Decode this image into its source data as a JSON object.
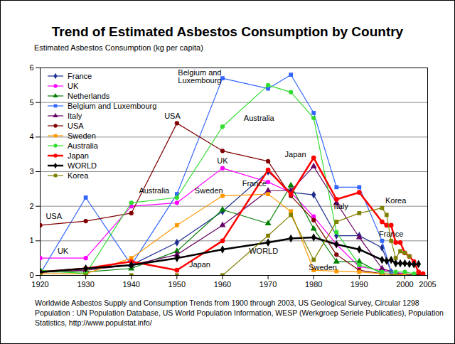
{
  "chart_data": {
    "type": "line",
    "title": "Trend of Estimated Asbestos Consumption by Country",
    "y_label": "Estimated Asbestos Consumption (kg per capita)",
    "xlim": [
      1920,
      2005
    ],
    "xticks": [
      1920,
      1930,
      1940,
      1950,
      1960,
      1970,
      1980,
      1990,
      2000,
      2005
    ],
    "ylim": [
      0,
      6
    ],
    "yticks": [
      0,
      1,
      2,
      3,
      4,
      5,
      6
    ],
    "grid": true,
    "legend": "top-left",
    "series": [
      {
        "name": "France",
        "color": "#1f2f8f",
        "marker": "diamond",
        "x": [
          1920,
          1930,
          1940,
          1950,
          1960,
          1970,
          1975,
          1980,
          1985,
          1990,
          1995,
          1997,
          2000
        ],
        "values": [
          0.1,
          0.2,
          0.3,
          0.95,
          1.85,
          3.0,
          2.4,
          2.33,
          1.15,
          1.15,
          0.8,
          0.1,
          0.0
        ]
      },
      {
        "name": "UK",
        "color": "#ff00ff",
        "marker": "circle",
        "x": [
          1920,
          1930,
          1940,
          1950,
          1960,
          1970,
          1975,
          1980,
          1985,
          1990,
          1995,
          2000
        ],
        "values": [
          0.5,
          0.5,
          2.0,
          2.1,
          3.1,
          2.7,
          2.4,
          1.7,
          0.9,
          0.25,
          0.15,
          0.05
        ]
      },
      {
        "name": "Netherlands",
        "color": "#008000",
        "marker": "triangle",
        "x": [
          1920,
          1930,
          1940,
          1950,
          1960,
          1970,
          1975,
          1980,
          1985,
          1990,
          1995,
          2000
        ],
        "values": [
          0.1,
          0.1,
          0.2,
          0.7,
          1.9,
          1.5,
          2.6,
          1.35,
          0.4,
          0.4,
          0.05,
          0.0
        ]
      },
      {
        "name": "Belgium and Luxembourg",
        "color": "#3366ff",
        "marker": "square",
        "x": [
          1920,
          1930,
          1940,
          1950,
          1960,
          1970,
          1975,
          1980,
          1985,
          1990,
          1995,
          1997,
          2000
        ],
        "values": [
          0.05,
          2.25,
          0.3,
          2.35,
          5.7,
          5.4,
          5.8,
          4.7,
          2.55,
          2.55,
          1.0,
          0.1,
          0.0
        ]
      },
      {
        "name": "Italy",
        "color": "#660066",
        "marker": "triangle",
        "x": [
          1920,
          1930,
          1940,
          1950,
          1960,
          1970,
          1975,
          1980,
          1985,
          1990,
          1995,
          2000
        ],
        "values": [
          0.1,
          0.15,
          0.3,
          0.6,
          1.45,
          2.45,
          2.45,
          3.15,
          2.1,
          1.1,
          0.2,
          0.0
        ]
      },
      {
        "name": "USA",
        "color": "#800000",
        "marker": "circle",
        "x": [
          1920,
          1930,
          1940,
          1950,
          1960,
          1970,
          1975,
          1980,
          1985,
          1990,
          1995,
          2000,
          2003
        ],
        "values": [
          1.45,
          1.57,
          1.8,
          4.4,
          3.6,
          3.3,
          2.3,
          1.6,
          0.6,
          0.15,
          0.05,
          0.03,
          0.02
        ]
      },
      {
        "name": "Sweden",
        "color": "#ff9900",
        "marker": "square",
        "x": [
          1920,
          1930,
          1940,
          1950,
          1960,
          1970,
          1975,
          1980,
          1985,
          1990,
          1995,
          2000
        ],
        "values": [
          0.05,
          0.05,
          0.5,
          1.45,
          2.3,
          2.35,
          1.85,
          0.15,
          0.12,
          0.1,
          0.05,
          0.02
        ]
      },
      {
        "name": "Australia",
        "color": "#33dd33",
        "marker": "circle",
        "x": [
          1920,
          1930,
          1940,
          1950,
          1960,
          1970,
          1975,
          1980,
          1985,
          1990,
          1995,
          1998,
          2000,
          2002
        ],
        "values": [
          0.15,
          0.05,
          2.1,
          2.25,
          4.3,
          5.5,
          5.3,
          4.55,
          1.25,
          0.3,
          0.1,
          0.1,
          0.1,
          0.05
        ]
      },
      {
        "name": "Japan",
        "color": "#ff0000",
        "marker": "circle",
        "line_style": "bold",
        "x": [
          1920,
          1930,
          1940,
          1950,
          1960,
          1970,
          1975,
          1980,
          1985,
          1990,
          1995,
          1996,
          1997,
          1998,
          1999,
          2000,
          2001,
          2002,
          2003,
          2004
        ],
        "values": [
          0.1,
          0.2,
          0.4,
          0.15,
          1.0,
          3.05,
          2.35,
          3.4,
          2.2,
          2.4,
          1.55,
          1.45,
          1.45,
          0.95,
          0.95,
          0.65,
          0.55,
          0.4,
          0.1,
          0.05
        ]
      },
      {
        "name": "WORLD",
        "color": "#000000",
        "marker": "diamond",
        "line_style": "bold",
        "x": [
          1920,
          1930,
          1940,
          1950,
          1960,
          1970,
          1975,
          1980,
          1985,
          1990,
          1995,
          1996,
          1997,
          1998,
          1999,
          2000,
          2001,
          2002,
          2003
        ],
        "values": [
          0.1,
          0.2,
          0.3,
          0.5,
          0.75,
          0.95,
          1.07,
          1.1,
          0.9,
          0.75,
          0.45,
          0.42,
          0.45,
          0.35,
          0.35,
          0.35,
          0.33,
          0.32,
          0.33
        ]
      },
      {
        "name": "Korea",
        "color": "#808000",
        "marker": "square",
        "x": [
          1920,
          1930,
          1940,
          1950,
          1960,
          1970,
          1975,
          1980,
          1985,
          1990,
          1995,
          1996,
          1997,
          1998,
          1999,
          2000,
          2001
        ],
        "values": [
          0.0,
          0.0,
          0.0,
          0.0,
          0.0,
          1.15,
          1.75,
          0.45,
          1.55,
          1.8,
          1.95,
          1.75,
          1.0,
          0.5,
          0.7,
          0.65,
          0.55
        ]
      }
    ],
    "annotations": [
      {
        "text": "Belgium and\nLuxembourg",
        "x": 1955,
        "y": 5.75
      },
      {
        "text": "Australia",
        "x": 1968,
        "y": 4.55
      },
      {
        "text": "USA",
        "x": 1949,
        "y": 4.6
      },
      {
        "text": "UK",
        "x": 1960,
        "y": 3.3
      },
      {
        "text": "Japan",
        "x": 1976,
        "y": 3.5
      },
      {
        "text": "Sweden",
        "x": 1957,
        "y": 2.45
      },
      {
        "text": "Australia",
        "x": 1945,
        "y": 2.45
      },
      {
        "text": "France",
        "x": 1967,
        "y": 2.65
      },
      {
        "text": "Italy",
        "x": 1986,
        "y": 2.0
      },
      {
        "text": "Korea",
        "x": 1998,
        "y": 2.15
      },
      {
        "text": "France",
        "x": 1997,
        "y": 1.2
      },
      {
        "text": "USA",
        "x": 1923,
        "y": 1.7
      },
      {
        "text": "WORLD",
        "x": 1969,
        "y": 0.7
      },
      {
        "text": "UK",
        "x": 1925,
        "y": 0.7
      },
      {
        "text": "Japan",
        "x": 1955,
        "y": 0.3
      },
      {
        "text": "Sweden",
        "x": 1982,
        "y": 0.22
      }
    ],
    "source": [
      "Worldwide Asbestos Supply and Consumption Trends from 1900 through 2003, US Geological Survey, Circular 1298",
      "Population : UN Population Database, US World Population Information, WESP (Werkgroep Seriele Publicaties), Population",
      "Statistics, http://www.populstat.info/"
    ]
  }
}
